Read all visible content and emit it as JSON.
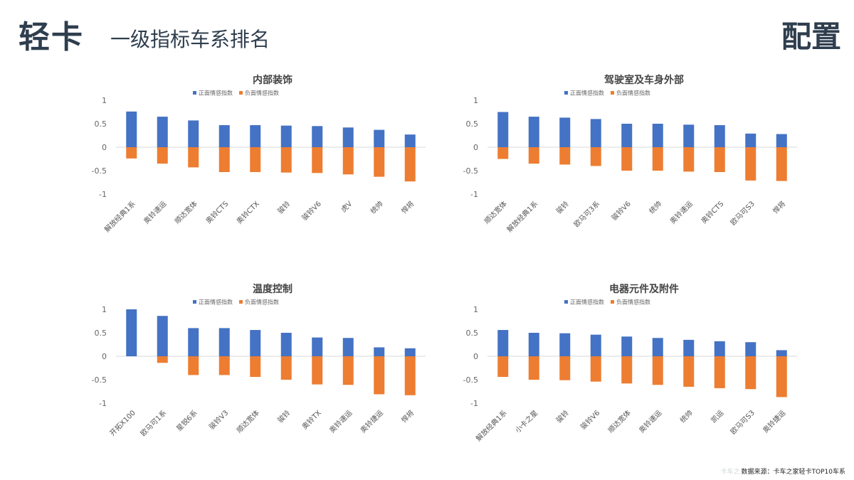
{
  "header": {
    "brand": "轻卡",
    "subtitle": "一级指标车系排名",
    "section": "配置"
  },
  "footer": {
    "watermark": "卡车之",
    "note": "数据来源：卡车之家轻卡TOP10车系"
  },
  "colors": {
    "positive": "#4472c4",
    "negative": "#ed7d31",
    "axis": "#d9d9d9"
  },
  "chart_data": [
    {
      "type": "bar",
      "title": "内部装饰",
      "categories": [
        "解放经典1系",
        "奥铃速运",
        "顺达宽体",
        "奥铃CTS",
        "奥铃CTX",
        "骏铃",
        "骏铃V6",
        "虎V",
        "统帅",
        "悍将"
      ],
      "series": [
        {
          "name": "正面情感指数",
          "values": [
            0.76,
            0.65,
            0.57,
            0.47,
            0.47,
            0.46,
            0.45,
            0.42,
            0.37,
            0.27
          ]
        },
        {
          "name": "负面情感指数",
          "values": [
            -0.24,
            -0.35,
            -0.43,
            -0.53,
            -0.53,
            -0.54,
            -0.55,
            -0.58,
            -0.63,
            -0.73
          ]
        }
      ],
      "yticks": [
        1,
        0.5,
        0,
        -0.5,
        -1
      ],
      "ylim": [
        -1,
        1
      ],
      "legend": "top"
    },
    {
      "type": "bar",
      "title": "驾驶室及车身外部",
      "categories": [
        "顺达宽体",
        "解放经典1系",
        "骏铃",
        "欧马可3系",
        "骏铃V6",
        "统帅",
        "奥铃速运",
        "奥铃CTS",
        "欧马可S3",
        "悍将"
      ],
      "series": [
        {
          "name": "正面情感指数",
          "values": [
            0.75,
            0.65,
            0.63,
            0.6,
            0.5,
            0.5,
            0.48,
            0.47,
            0.29,
            0.28
          ]
        },
        {
          "name": "负面情感指数",
          "values": [
            -0.25,
            -0.35,
            -0.37,
            -0.4,
            -0.5,
            -0.5,
            -0.52,
            -0.53,
            -0.71,
            -0.72
          ]
        }
      ],
      "yticks": [
        1,
        0.5,
        0,
        -0.5,
        -1
      ],
      "ylim": [
        -1,
        1
      ],
      "legend": "top"
    },
    {
      "type": "bar",
      "title": "温度控制",
      "categories": [
        "开拓X100",
        "欧马可1系",
        "星锐6系",
        "骏铃V3",
        "顺达宽体",
        "骏铃",
        "奥铃TX",
        "奥铃速运",
        "奥铃捷运",
        "悍将"
      ],
      "series": [
        {
          "name": "正面情感指数",
          "values": [
            1.0,
            0.86,
            0.6,
            0.6,
            0.56,
            0.5,
            0.4,
            0.39,
            0.19,
            0.17
          ]
        },
        {
          "name": "负面情感指数",
          "values": [
            0,
            -0.14,
            -0.4,
            -0.4,
            -0.44,
            -0.5,
            -0.6,
            -0.61,
            -0.81,
            -0.83
          ]
        }
      ],
      "yticks": [
        1,
        0.5,
        0,
        -0.5,
        -1
      ],
      "ylim": [
        -1,
        1
      ],
      "legend": "top"
    },
    {
      "type": "bar",
      "title": "电器元件及附件",
      "categories": [
        "解放经典1系",
        "小卡之星",
        "骏铃",
        "骏铃V6",
        "顺达宽体",
        "奥铃速运",
        "统帅",
        "凯运",
        "欧马可S3",
        "奥铃捷运"
      ],
      "series": [
        {
          "name": "正面情感指数",
          "values": [
            0.56,
            0.5,
            0.49,
            0.46,
            0.42,
            0.39,
            0.35,
            0.32,
            0.3,
            0.13
          ]
        },
        {
          "name": "负面情感指数",
          "values": [
            -0.44,
            -0.5,
            -0.51,
            -0.54,
            -0.58,
            -0.61,
            -0.65,
            -0.68,
            -0.7,
            -0.87
          ]
        }
      ],
      "yticks": [
        1,
        0.5,
        0,
        -0.5,
        -1
      ],
      "ylim": [
        -1,
        1
      ],
      "legend": "top"
    }
  ]
}
